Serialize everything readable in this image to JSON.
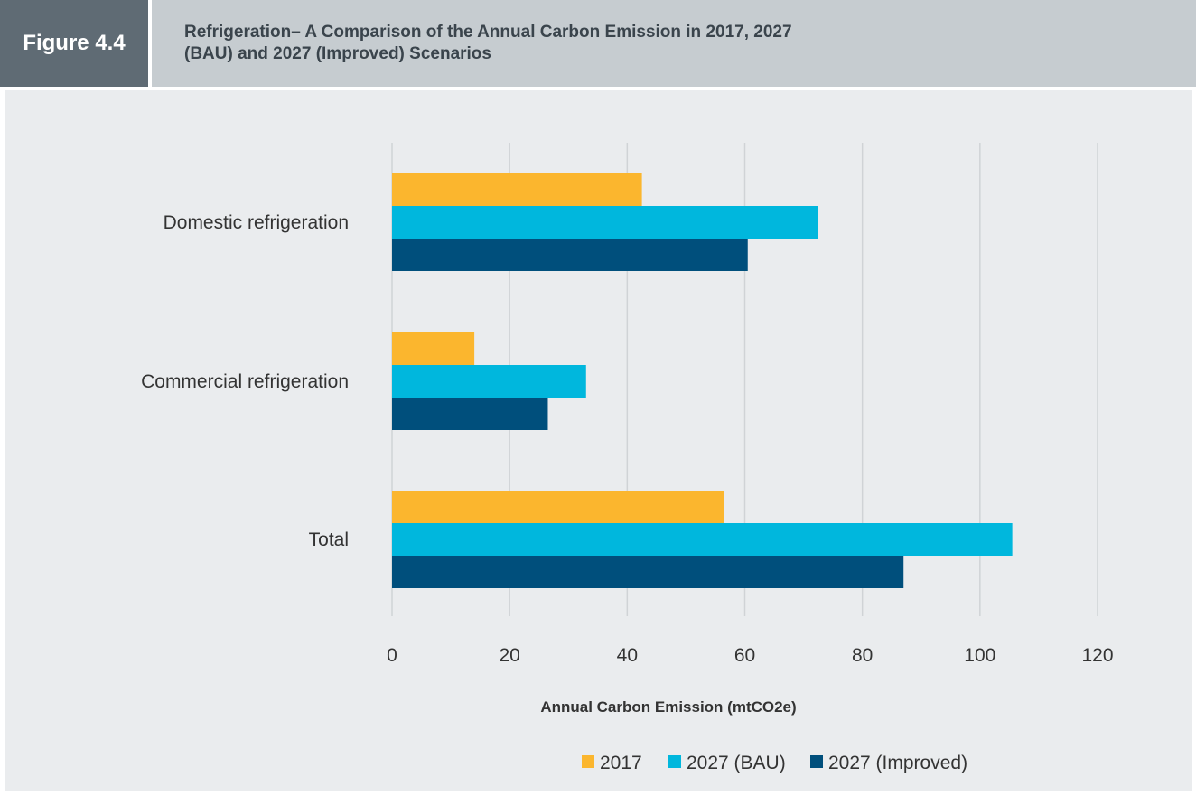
{
  "figure": {
    "label": "Figure 4.4",
    "title": "Refrigeration– A Comparison of the Annual Carbon Emission in 2017, 2027 (BAU) and 2027 (Improved) Scenarios"
  },
  "colors": {
    "label_bg": "#5f6b74",
    "title_bg": "#c6ccd0",
    "panel_bg": "#eaecee",
    "grid": "#d0d3d6"
  },
  "chart_data": {
    "type": "bar",
    "orientation": "horizontal",
    "categories": [
      "Domestic refrigeration",
      "Commercial refrigeration",
      "Total"
    ],
    "series": [
      {
        "name": "2017",
        "color": "#fbb62e",
        "values": [
          42.5,
          14,
          56.5
        ]
      },
      {
        "name": "2027 (BAU)",
        "color": "#00b7dd",
        "values": [
          72.5,
          33,
          105.5
        ]
      },
      {
        "name": "2027 (Improved)",
        "color": "#004f7c",
        "values": [
          60.5,
          26.5,
          87
        ]
      }
    ],
    "xlabel": "Annual Carbon Emission (mtCO2e)",
    "xlim": [
      0,
      120
    ],
    "xticks": [
      "0",
      "20",
      "40",
      "60",
      "80",
      "100",
      "120"
    ],
    "grid": "vertical",
    "legend": "bottom"
  }
}
